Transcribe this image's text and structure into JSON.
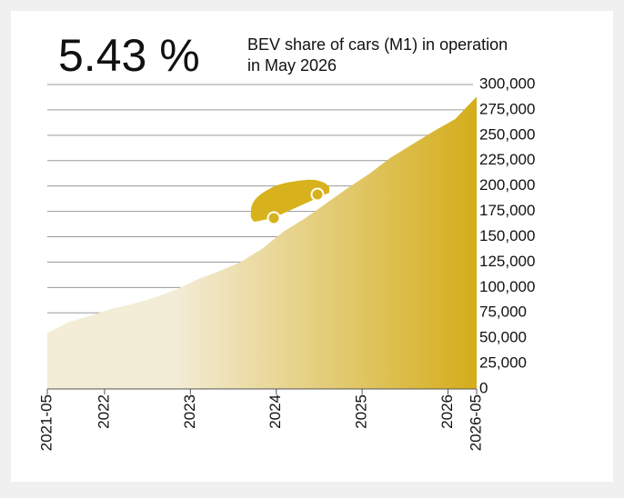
{
  "chart_data": {
    "type": "area",
    "headline": "5.43 %",
    "title_lines": [
      "BEV share of cars (M1) in operation",
      "in May 2026"
    ],
    "x": [
      "2021-05",
      "2021-08",
      "2021-11",
      "2022-02",
      "2022-05",
      "2022-08",
      "2022-11",
      "2023-02",
      "2023-05",
      "2023-08",
      "2023-11",
      "2024-02",
      "2024-05",
      "2024-08",
      "2024-11",
      "2025-02",
      "2025-05",
      "2025-08",
      "2025-11",
      "2026-02",
      "2026-05"
    ],
    "values": [
      55000,
      66000,
      72000,
      79000,
      84000,
      90000,
      98000,
      108000,
      116000,
      125000,
      138000,
      155000,
      168000,
      183000,
      198000,
      212000,
      228000,
      241000,
      254000,
      266000,
      288000
    ],
    "gradient": [
      "#f3ecd6",
      "#d4ad1a"
    ],
    "xlim": [
      "2021-05",
      "2026-05"
    ],
    "xticks": [
      "2021-05",
      "2022",
      "2023",
      "2024",
      "2025",
      "2026",
      "2026-05"
    ],
    "ylim": [
      0,
      300000
    ],
    "yticks": [
      0,
      {
        "value": 25000,
        "label": "25,000"
      },
      {
        "value": 50000,
        "label": "50,000"
      },
      {
        "value": 75000,
        "label": "75,000"
      },
      {
        "value": 100000,
        "label": "100,000"
      },
      {
        "value": 125000,
        "label": "125,000"
      },
      {
        "value": 150000,
        "label": "150,000"
      },
      {
        "value": 175000,
        "label": "175,000"
      },
      {
        "value": 200000,
        "label": "200,000"
      },
      {
        "value": 225000,
        "label": "225,000"
      },
      {
        "value": 250000,
        "label": "250,000"
      },
      {
        "value": 275000,
        "label": "275,000"
      },
      {
        "value": 300000,
        "label": "300,000"
      }
    ],
    "grid": true
  }
}
